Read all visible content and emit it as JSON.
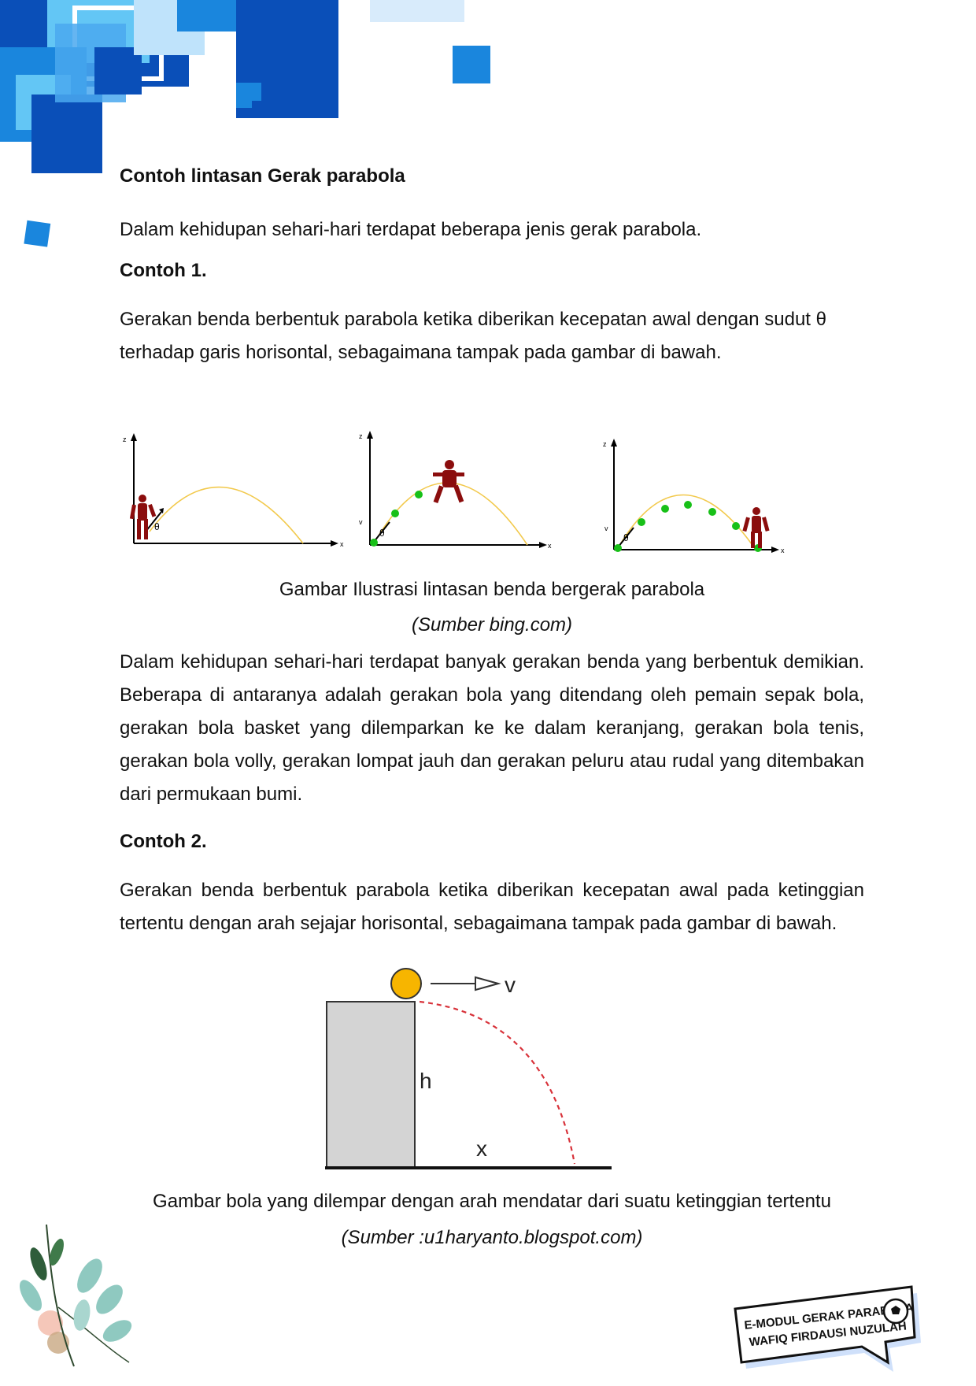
{
  "section_title": "Contoh lintasan Gerak parabola",
  "intro": "Dalam kehidupan sehari-hari terdapat beberapa jenis gerak parabola.",
  "example1": {
    "title": "Contoh 1.",
    "text": "Gerakan benda berbentuk parabola ketika diberikan kecepatan awal dengan sudut θ terhadap garis horisontal, sebagaimana tampak pada gambar di bawah.",
    "figure": {
      "axis_z": "z",
      "axis_x": "x",
      "angle": "θ",
      "velocity": "v",
      "caption": "Gambar Ilustrasi lintasan benda bergerak parabola",
      "source": "(Sumber bing.com)"
    },
    "paragraph": "Dalam kehidupan sehari-hari terdapat banyak gerakan benda yang berbentuk demikian. Beberapa di antaranya adalah gerakan bola yang ditendang oleh pemain sepak bola, gerakan bola basket yang dilemparkan ke ke dalam keranjang, gerakan bola tenis, gerakan bola volly, gerakan lompat jauh dan gerakan peluru atau rudal yang ditembakan dari permukaan bumi."
  },
  "example2": {
    "title": "Contoh 2.",
    "text": "Gerakan benda berbentuk parabola ketika diberikan kecepatan awal pada ketinggian tertentu dengan arah sejajar horisontal, sebagaimana tampak pada gambar di bawah.",
    "figure": {
      "label_v": "v",
      "label_h": "h",
      "label_x": "x",
      "caption": "Gambar bola yang dilempar dengan arah mendatar dari suatu ketinggian tertentu",
      "source": "(Sumber :u1haryanto.blogspot.com)"
    }
  },
  "badge": {
    "line1": "E-MODUL GERAK PARABOLA",
    "line2": "WAFIQ FIRDAUSI NUZULAH"
  },
  "colors": {
    "blue_dark": "#0a4fb8",
    "blue_mid": "#1a86dd",
    "blue_light": "#63c6f5",
    "figure_red": "#8b0d0d",
    "path_yellow": "#f2c94c",
    "dot_green": "#18c018",
    "ball_orange": "#f7b500",
    "dash_red": "#d8323a",
    "badge_fill": "#dfe9fb"
  }
}
